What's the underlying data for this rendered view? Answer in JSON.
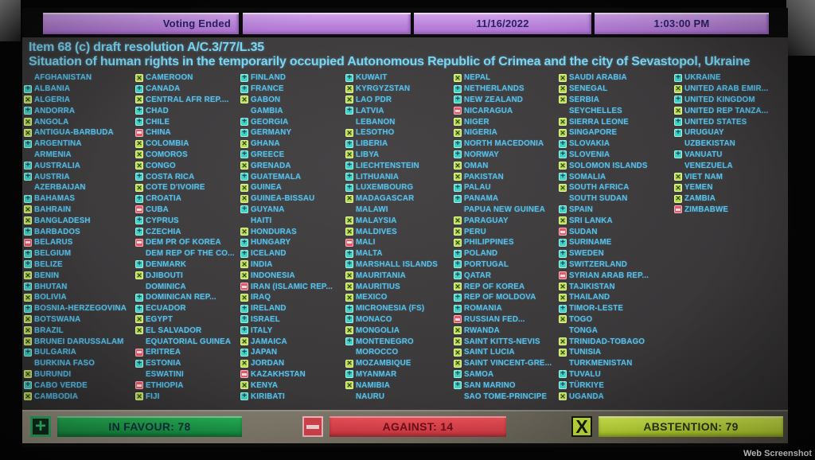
{
  "header": {
    "status": "Voting Ended",
    "date": "11/16/2022",
    "time": "1:03:00 PM"
  },
  "title": {
    "line1": "Item 68 (c) draft resolution A/C.3/77/L.35",
    "line2": "Situation of human rights in the temporarily occupied Autonomous Republic of Crimea and the city of Sevastopol, Ukraine"
  },
  "legend": {
    "favour_symbol": "+",
    "against_symbol": "−",
    "abstention_symbol": "X"
  },
  "summary": {
    "in_favour": {
      "label": "IN FAVOUR",
      "count": 78,
      "display": "IN FAVOUR: 78"
    },
    "against": {
      "label": "AGAINST",
      "count": 14,
      "display": "AGAINST: 14"
    },
    "abstention": {
      "label": "ABSTENTION",
      "count": 79,
      "display": "ABSTENTION: 79"
    }
  },
  "watermark": "Web Screenshot",
  "colors": {
    "header_purple": "#bb85dc",
    "header_text": "#2c2068",
    "board_bg": "#3a3839",
    "country_text": "#57c0e9",
    "title_text": "#7ad5f3",
    "favour_icon": "#3ed2c4",
    "abstention_icon": "#b8dc4c",
    "against_icon": "#e65868",
    "favour_bar": "#1da54e",
    "against_bar": "#de424d",
    "abstention_bar": "#c3e23c"
  },
  "board": {
    "columns": [
      [
        {
          "name": "AFGHANISTAN",
          "vote": ""
        },
        {
          "name": "ALBANIA",
          "vote": "Y"
        },
        {
          "name": "ALGERIA",
          "vote": "A"
        },
        {
          "name": "ANDORRA",
          "vote": "Y"
        },
        {
          "name": "ANGOLA",
          "vote": "A"
        },
        {
          "name": "ANTIGUA-BARBUDA",
          "vote": "A"
        },
        {
          "name": "ARGENTINA",
          "vote": "Y"
        },
        {
          "name": "ARMENIA",
          "vote": ""
        },
        {
          "name": "AUSTRALIA",
          "vote": "Y"
        },
        {
          "name": "AUSTRIA",
          "vote": "Y"
        },
        {
          "name": "AZERBAIJAN",
          "vote": ""
        },
        {
          "name": "BAHAMAS",
          "vote": "Y"
        },
        {
          "name": "BAHRAIN",
          "vote": "A"
        },
        {
          "name": "BANGLADESH",
          "vote": "A"
        },
        {
          "name": "BARBADOS",
          "vote": "Y"
        },
        {
          "name": "BELARUS",
          "vote": "N"
        },
        {
          "name": "BELGIUM",
          "vote": "Y"
        },
        {
          "name": "BELIZE",
          "vote": "Y"
        },
        {
          "name": "BENIN",
          "vote": "A"
        },
        {
          "name": "BHUTAN",
          "vote": "Y"
        },
        {
          "name": "BOLIVIA",
          "vote": "A"
        },
        {
          "name": "BOSNIA-HERZEGOVINA",
          "vote": "Y"
        },
        {
          "name": "BOTSWANA",
          "vote": "A"
        },
        {
          "name": "BRAZIL",
          "vote": "A"
        },
        {
          "name": "BRUNEI DARUSSALAM",
          "vote": "A"
        },
        {
          "name": "BULGARIA",
          "vote": "Y"
        },
        {
          "name": "BURKINA FASO",
          "vote": ""
        },
        {
          "name": "BURUNDI",
          "vote": "A"
        },
        {
          "name": "CABO VERDE",
          "vote": "Y"
        },
        {
          "name": "CAMBODIA",
          "vote": "A"
        }
      ],
      [
        {
          "name": "CAMEROON",
          "vote": "A"
        },
        {
          "name": "CANADA",
          "vote": "Y"
        },
        {
          "name": "CENTRAL AFR REP....",
          "vote": "A"
        },
        {
          "name": "CHAD",
          "vote": "Y"
        },
        {
          "name": "CHILE",
          "vote": "Y"
        },
        {
          "name": "CHINA",
          "vote": "N"
        },
        {
          "name": "COLOMBIA",
          "vote": "A"
        },
        {
          "name": "COMOROS",
          "vote": "A"
        },
        {
          "name": "CONGO",
          "vote": "A"
        },
        {
          "name": "COSTA RICA",
          "vote": "Y"
        },
        {
          "name": "COTE D'IVOIRE",
          "vote": "A"
        },
        {
          "name": "CROATIA",
          "vote": "Y"
        },
        {
          "name": "CUBA",
          "vote": "N"
        },
        {
          "name": "CYPRUS",
          "vote": "Y"
        },
        {
          "name": "CZECHIA",
          "vote": "Y"
        },
        {
          "name": "DEM PR OF KOREA",
          "vote": "N"
        },
        {
          "name": "DEM REP OF THE CO...",
          "vote": ""
        },
        {
          "name": "DENMARK",
          "vote": "Y"
        },
        {
          "name": "DJIBOUTI",
          "vote": "A"
        },
        {
          "name": "DOMINICA",
          "vote": ""
        },
        {
          "name": "DOMINICAN REP...",
          "vote": "Y"
        },
        {
          "name": "ECUADOR",
          "vote": "Y"
        },
        {
          "name": "EGYPT",
          "vote": "A"
        },
        {
          "name": "EL SALVADOR",
          "vote": "A"
        },
        {
          "name": "EQUATORIAL GUINEA",
          "vote": ""
        },
        {
          "name": "ERITREA",
          "vote": "N"
        },
        {
          "name": "ESTONIA",
          "vote": "Y"
        },
        {
          "name": "ESWATINI",
          "vote": ""
        },
        {
          "name": "ETHIOPIA",
          "vote": "N"
        },
        {
          "name": "FIJI",
          "vote": "A"
        }
      ],
      [
        {
          "name": "FINLAND",
          "vote": "Y"
        },
        {
          "name": "FRANCE",
          "vote": "Y"
        },
        {
          "name": "GABON",
          "vote": "A"
        },
        {
          "name": "GAMBIA",
          "vote": ""
        },
        {
          "name": "GEORGIA",
          "vote": "Y"
        },
        {
          "name": "GERMANY",
          "vote": "Y"
        },
        {
          "name": "GHANA",
          "vote": "A"
        },
        {
          "name": "GREECE",
          "vote": "Y"
        },
        {
          "name": "GRENADA",
          "vote": "A"
        },
        {
          "name": "GUATEMALA",
          "vote": "Y"
        },
        {
          "name": "GUINEA",
          "vote": "A"
        },
        {
          "name": "GUINEA-BISSAU",
          "vote": "A"
        },
        {
          "name": "GUYANA",
          "vote": "Y"
        },
        {
          "name": "HAITI",
          "vote": ""
        },
        {
          "name": "HONDURAS",
          "vote": "A"
        },
        {
          "name": "HUNGARY",
          "vote": "Y"
        },
        {
          "name": "ICELAND",
          "vote": "Y"
        },
        {
          "name": "INDIA",
          "vote": "A"
        },
        {
          "name": "INDONESIA",
          "vote": "A"
        },
        {
          "name": "IRAN (ISLAMIC REP...",
          "vote": "N"
        },
        {
          "name": "IRAQ",
          "vote": "A"
        },
        {
          "name": "IRELAND",
          "vote": "Y"
        },
        {
          "name": "ISRAEL",
          "vote": "Y"
        },
        {
          "name": "ITALY",
          "vote": "Y"
        },
        {
          "name": "JAMAICA",
          "vote": "A"
        },
        {
          "name": "JAPAN",
          "vote": "Y"
        },
        {
          "name": "JORDAN",
          "vote": "A"
        },
        {
          "name": "KAZAKHSTAN",
          "vote": "N"
        },
        {
          "name": "KENYA",
          "vote": "A"
        },
        {
          "name": "KIRIBATI",
          "vote": "Y"
        }
      ],
      [
        {
          "name": "KUWAIT",
          "vote": "Y"
        },
        {
          "name": "KYRGYZSTAN",
          "vote": "A"
        },
        {
          "name": "LAO PDR",
          "vote": "A"
        },
        {
          "name": "LATVIA",
          "vote": "Y"
        },
        {
          "name": "LEBANON",
          "vote": ""
        },
        {
          "name": "LESOTHO",
          "vote": "A"
        },
        {
          "name": "LIBERIA",
          "vote": "Y"
        },
        {
          "name": "LIBYA",
          "vote": "A"
        },
        {
          "name": "LIECHTENSTEIN",
          "vote": "Y"
        },
        {
          "name": "LITHUANIA",
          "vote": "Y"
        },
        {
          "name": "LUXEMBOURG",
          "vote": "Y"
        },
        {
          "name": "MADAGASCAR",
          "vote": "A"
        },
        {
          "name": "MALAWI",
          "vote": ""
        },
        {
          "name": "MALAYSIA",
          "vote": "A"
        },
        {
          "name": "MALDIVES",
          "vote": "A"
        },
        {
          "name": "MALI",
          "vote": "N"
        },
        {
          "name": "MALTA",
          "vote": "Y"
        },
        {
          "name": "MARSHALL ISLANDS",
          "vote": "Y"
        },
        {
          "name": "MAURITANIA",
          "vote": "A"
        },
        {
          "name": "MAURITIUS",
          "vote": "A"
        },
        {
          "name": "MEXICO",
          "vote": "A"
        },
        {
          "name": "MICRONESIA (FS)",
          "vote": "Y"
        },
        {
          "name": "MONACO",
          "vote": "Y"
        },
        {
          "name": "MONGOLIA",
          "vote": "A"
        },
        {
          "name": "MONTENEGRO",
          "vote": "Y"
        },
        {
          "name": "MOROCCO",
          "vote": ""
        },
        {
          "name": "MOZAMBIQUE",
          "vote": "A"
        },
        {
          "name": "MYANMAR",
          "vote": "Y"
        },
        {
          "name": "NAMIBIA",
          "vote": "A"
        },
        {
          "name": "NAURU",
          "vote": ""
        }
      ],
      [
        {
          "name": "NEPAL",
          "vote": "A"
        },
        {
          "name": "NETHERLANDS",
          "vote": "Y"
        },
        {
          "name": "NEW ZEALAND",
          "vote": "Y"
        },
        {
          "name": "NICARAGUA",
          "vote": "N"
        },
        {
          "name": "NIGER",
          "vote": "A"
        },
        {
          "name": "NIGERIA",
          "vote": "A"
        },
        {
          "name": "NORTH MACEDONIA",
          "vote": "Y"
        },
        {
          "name": "NORWAY",
          "vote": "Y"
        },
        {
          "name": "OMAN",
          "vote": "A"
        },
        {
          "name": "PAKISTAN",
          "vote": "A"
        },
        {
          "name": "PALAU",
          "vote": "Y"
        },
        {
          "name": "PANAMA",
          "vote": "Y"
        },
        {
          "name": "PAPUA NEW GUINEA",
          "vote": ""
        },
        {
          "name": "PARAGUAY",
          "vote": "A"
        },
        {
          "name": "PERU",
          "vote": "A"
        },
        {
          "name": "PHILIPPINES",
          "vote": "A"
        },
        {
          "name": "POLAND",
          "vote": "Y"
        },
        {
          "name": "PORTUGAL",
          "vote": "Y"
        },
        {
          "name": "QATAR",
          "vote": "Y"
        },
        {
          "name": "REP OF KOREA",
          "vote": "A"
        },
        {
          "name": "REP OF MOLDOVA",
          "vote": "Y"
        },
        {
          "name": "ROMANIA",
          "vote": "Y"
        },
        {
          "name": "RUSSIAN FED...",
          "vote": "N"
        },
        {
          "name": "RWANDA",
          "vote": "A"
        },
        {
          "name": "SAINT KITTS-NEVIS",
          "vote": "A"
        },
        {
          "name": "SAINT LUCIA",
          "vote": "A"
        },
        {
          "name": "SAINT VINCENT-GRE...",
          "vote": "A"
        },
        {
          "name": "SAMOA",
          "vote": "Y"
        },
        {
          "name": "SAN MARINO",
          "vote": "Y"
        },
        {
          "name": "SAO TOME-PRINCIPE",
          "vote": ""
        }
      ],
      [
        {
          "name": "SAUDI ARABIA",
          "vote": "A"
        },
        {
          "name": "SENEGAL",
          "vote": "A"
        },
        {
          "name": "SERBIA",
          "vote": "A"
        },
        {
          "name": "SEYCHELLES",
          "vote": ""
        },
        {
          "name": "SIERRA LEONE",
          "vote": "A"
        },
        {
          "name": "SINGAPORE",
          "vote": "A"
        },
        {
          "name": "SLOVAKIA",
          "vote": "Y"
        },
        {
          "name": "SLOVENIA",
          "vote": "Y"
        },
        {
          "name": "SOLOMON ISLANDS",
          "vote": "A"
        },
        {
          "name": "SOMALIA",
          "vote": "Y"
        },
        {
          "name": "SOUTH AFRICA",
          "vote": "A"
        },
        {
          "name": "SOUTH SUDAN",
          "vote": ""
        },
        {
          "name": "SPAIN",
          "vote": "Y"
        },
        {
          "name": "SRI LANKA",
          "vote": "A"
        },
        {
          "name": "SUDAN",
          "vote": "N"
        },
        {
          "name": "SURINAME",
          "vote": "Y"
        },
        {
          "name": "SWEDEN",
          "vote": "Y"
        },
        {
          "name": "SWITZERLAND",
          "vote": "Y"
        },
        {
          "name": "SYRIAN ARAB REP...",
          "vote": "N"
        },
        {
          "name": "TAJIKISTAN",
          "vote": "A"
        },
        {
          "name": "THAILAND",
          "vote": "A"
        },
        {
          "name": "TIMOR-LESTE",
          "vote": "Y"
        },
        {
          "name": "TOGO",
          "vote": "A"
        },
        {
          "name": "TONGA",
          "vote": ""
        },
        {
          "name": "TRINIDAD-TOBAGO",
          "vote": "A"
        },
        {
          "name": "TUNISIA",
          "vote": "A"
        },
        {
          "name": "TURKMENISTAN",
          "vote": ""
        },
        {
          "name": "TUVALU",
          "vote": "Y"
        },
        {
          "name": "TÜRKIYE",
          "vote": "Y"
        },
        {
          "name": "UGANDA",
          "vote": "A"
        }
      ],
      [
        {
          "name": "UKRAINE",
          "vote": "Y"
        },
        {
          "name": "UNITED ARAB EMIR...",
          "vote": "A"
        },
        {
          "name": "UNITED KINGDOM",
          "vote": "Y"
        },
        {
          "name": "UNITED REP TANZA...",
          "vote": "A"
        },
        {
          "name": "UNITED STATES",
          "vote": "Y"
        },
        {
          "name": "URUGUAY",
          "vote": "Y"
        },
        {
          "name": "UZBEKISTAN",
          "vote": ""
        },
        {
          "name": "VANUATU",
          "vote": "Y"
        },
        {
          "name": "VENEZUELA",
          "vote": ""
        },
        {
          "name": "VIET NAM",
          "vote": "A"
        },
        {
          "name": "YEMEN",
          "vote": "A"
        },
        {
          "name": "ZAMBIA",
          "vote": "A"
        },
        {
          "name": "ZIMBABWE",
          "vote": "N"
        }
      ]
    ]
  }
}
